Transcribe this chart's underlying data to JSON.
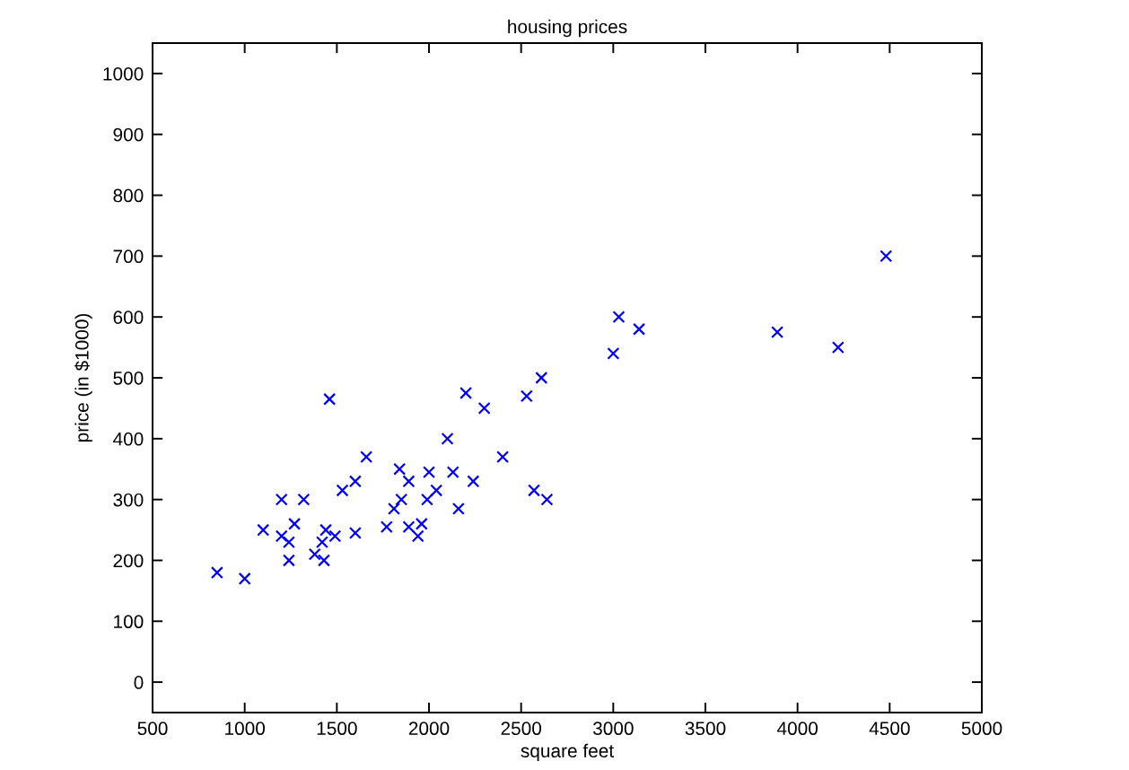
{
  "chart_data": {
    "type": "scatter",
    "title": "housing prices",
    "xlabel": "square feet",
    "ylabel": "price (in $1000)",
    "x": [
      2100,
      1600,
      2400,
      1420,
      3000,
      1990,
      1530,
      1430,
      1380,
      1490,
      1940,
      2000,
      1890,
      4480,
      1270,
      2300,
      1320,
      1240,
      2610,
      3030,
      1770,
      1890,
      1600,
      1960,
      3890,
      1100,
      1460,
      2530,
      2200,
      2640,
      1840,
      1000,
      2040,
      3140,
      1810,
      1440,
      1240,
      2130,
      4220,
      2160,
      1660,
      2240,
      2570,
      1200,
      850,
      1850,
      1200
    ],
    "values": [
      400,
      330,
      370,
      230,
      540,
      300,
      315,
      200,
      210,
      240,
      240,
      345,
      330,
      700,
      260,
      450,
      300,
      200,
      500,
      600,
      255,
      255,
      245,
      260,
      575,
      250,
      465,
      470,
      475,
      300,
      350,
      170,
      315,
      580,
      285,
      250,
      230,
      345,
      550,
      285,
      370,
      330,
      315,
      300,
      180,
      300,
      240
    ],
    "color": "#0000ff",
    "marker": "cross",
    "xlim": [
      500,
      5000
    ],
    "xticks": [
      500,
      1000,
      1500,
      2000,
      2500,
      3000,
      3500,
      4000,
      4500,
      5000
    ],
    "ylim": [
      -50,
      1050
    ],
    "yticks": [
      0,
      100,
      200,
      300,
      400,
      500,
      600,
      700,
      800,
      900,
      1000
    ],
    "grid": false
  }
}
